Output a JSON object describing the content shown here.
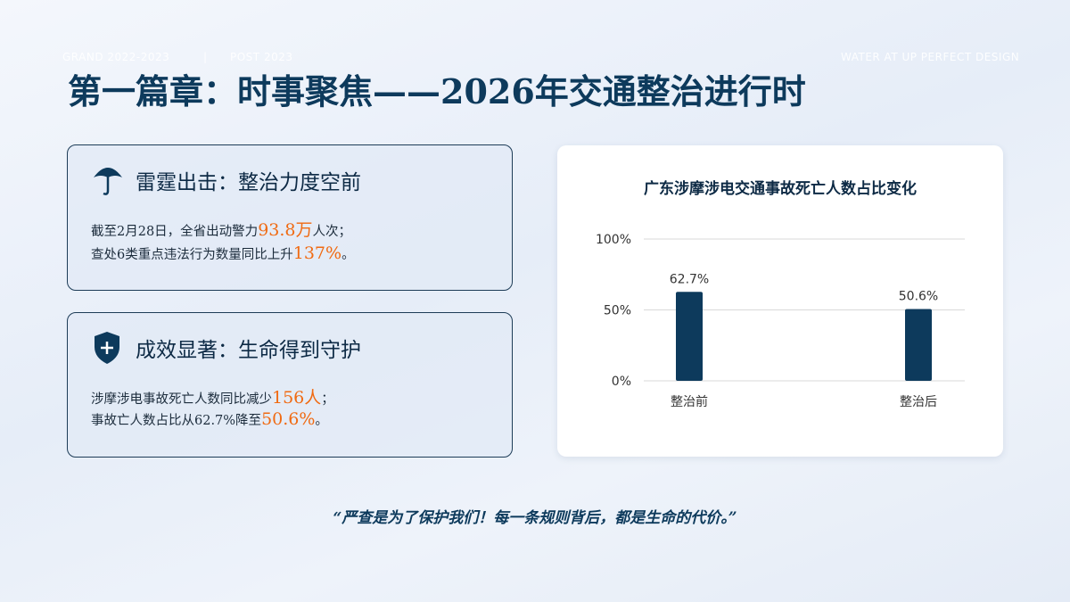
{
  "header": {
    "tag_left": "GRAND 2022-2023",
    "tag_mid": "POST 2023",
    "tag_right": "WATER AT UP PERFECT DESIGN",
    "title": "第一篇章：时事聚焦——2026年交通整治进行时"
  },
  "cards": [
    {
      "heading": "雷霆出击：整治力度空前",
      "lines": [
        [
          "截至2月28日，全省出动警力",
          "93.8万",
          "人次；"
        ],
        [
          "查处6类重点违法行为数量同比上升",
          "137%",
          "。"
        ]
      ]
    },
    {
      "heading": "成效显著：生命得到守护",
      "lines": [
        [
          "涉摩涉电事故死亡人数同比减少",
          "156人",
          "；"
        ],
        [
          "事故亡人数占比从62.7%降至",
          "50.6%",
          "。"
        ]
      ]
    }
  ],
  "chart_data": {
    "type": "bar",
    "title": "广东涉摩涉电交通事故死亡人数占比变化",
    "categories": [
      "整治前",
      "整治后"
    ],
    "values": [
      62.7,
      50.6
    ],
    "value_labels": [
      "62.7%",
      "50.6%"
    ],
    "color": "#0d3a5c",
    "ylim": [
      0,
      100
    ],
    "yticks": [
      {
        "value": 0,
        "label": "0%"
      },
      {
        "value": 50,
        "label": "50%"
      },
      {
        "value": 100,
        "label": "100%"
      }
    ],
    "grid": true
  },
  "quote": "“严查是为了保护我们！每一条规则背后，都是生命的代价。”"
}
